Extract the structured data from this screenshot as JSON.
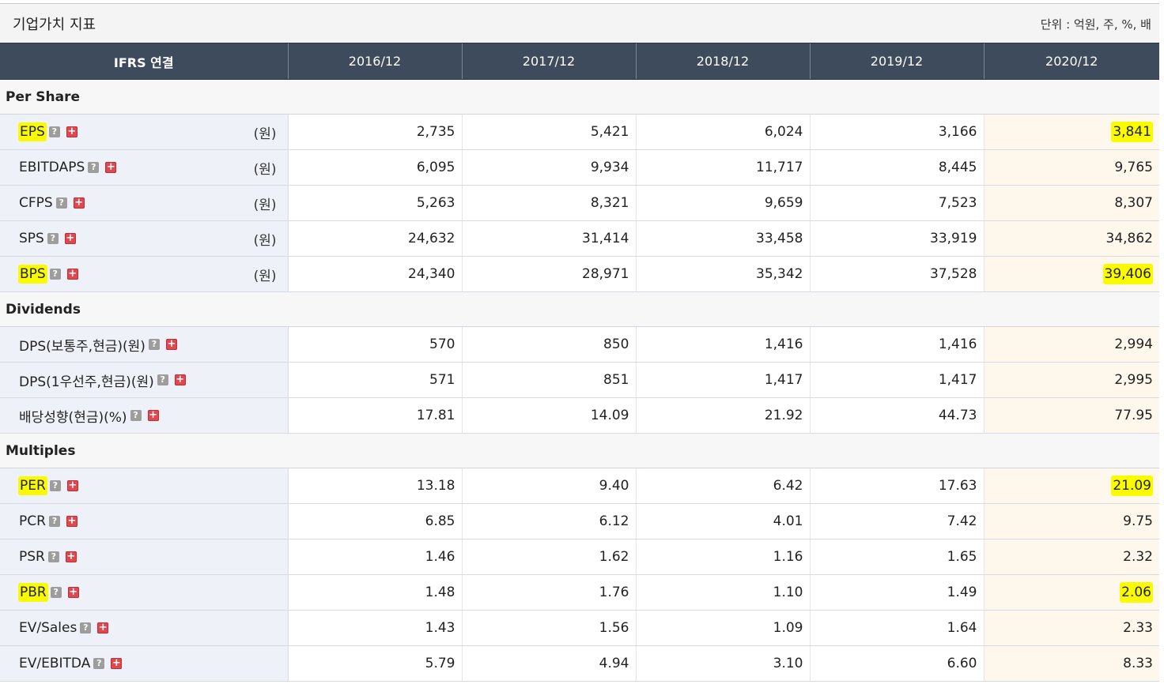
{
  "header": {
    "title": "기업가치 지표",
    "unit_note": "단위 : 억원, 주, %, 배"
  },
  "table": {
    "corner_label": "IFRS 연결",
    "columns": [
      "2016/12",
      "2017/12",
      "2018/12",
      "2019/12",
      "2020/12"
    ],
    "sections": [
      {
        "name": "Per Share",
        "rows": [
          {
            "label": "EPS",
            "unit": "(원)",
            "highlight": true,
            "values": [
              "2,735",
              "5,421",
              "6,024",
              "3,166",
              "3,841"
            ]
          },
          {
            "label": "EBITDAPS",
            "unit": "(원)",
            "highlight": false,
            "values": [
              "6,095",
              "9,934",
              "11,717",
              "8,445",
              "9,765"
            ]
          },
          {
            "label": "CFPS",
            "unit": "(원)",
            "highlight": false,
            "values": [
              "5,263",
              "8,321",
              "9,659",
              "7,523",
              "8,307"
            ]
          },
          {
            "label": "SPS",
            "unit": "(원)",
            "highlight": false,
            "values": [
              "24,632",
              "31,414",
              "33,458",
              "33,919",
              "34,862"
            ]
          },
          {
            "label": "BPS",
            "unit": "(원)",
            "highlight": true,
            "values": [
              "24,340",
              "28,971",
              "35,342",
              "37,528",
              "39,406"
            ]
          }
        ]
      },
      {
        "name": "Dividends",
        "rows": [
          {
            "label": "DPS(보통주,현금)(원)",
            "unit": "",
            "highlight": false,
            "values": [
              "570",
              "850",
              "1,416",
              "1,416",
              "2,994"
            ]
          },
          {
            "label": "DPS(1우선주,현금)(원)",
            "unit": "",
            "highlight": false,
            "values": [
              "571",
              "851",
              "1,417",
              "1,417",
              "2,995"
            ]
          },
          {
            "label": "배당성향(현금)(%)",
            "unit": "",
            "highlight": false,
            "values": [
              "17.81",
              "14.09",
              "21.92",
              "44.73",
              "77.95"
            ]
          }
        ]
      },
      {
        "name": "Multiples",
        "rows": [
          {
            "label": "PER",
            "unit": "",
            "highlight": true,
            "values": [
              "13.18",
              "9.40",
              "6.42",
              "17.63",
              "21.09"
            ]
          },
          {
            "label": "PCR",
            "unit": "",
            "highlight": false,
            "values": [
              "6.85",
              "6.12",
              "4.01",
              "7.42",
              "9.75"
            ]
          },
          {
            "label": "PSR",
            "unit": "",
            "highlight": false,
            "values": [
              "1.46",
              "1.62",
              "1.16",
              "1.65",
              "2.32"
            ]
          },
          {
            "label": "PBR",
            "unit": "",
            "highlight": true,
            "values": [
              "1.48",
              "1.76",
              "1.10",
              "1.49",
              "2.06"
            ]
          },
          {
            "label": "EV/Sales",
            "unit": "",
            "highlight": false,
            "values": [
              "1.43",
              "1.56",
              "1.09",
              "1.64",
              "2.33"
            ]
          },
          {
            "label": "EV/EBITDA",
            "unit": "",
            "highlight": false,
            "values": [
              "5.79",
              "4.94",
              "3.10",
              "6.60",
              "8.33"
            ]
          }
        ]
      }
    ]
  },
  "icons": {
    "help": "?",
    "expand": "+"
  },
  "colors": {
    "header_bg": "#3d4b5c",
    "label_bg": "#eef1f8",
    "last_col_bg": "#fdf7ec",
    "highlight": "#fbfb00",
    "expand_icon": "#e0484f"
  }
}
